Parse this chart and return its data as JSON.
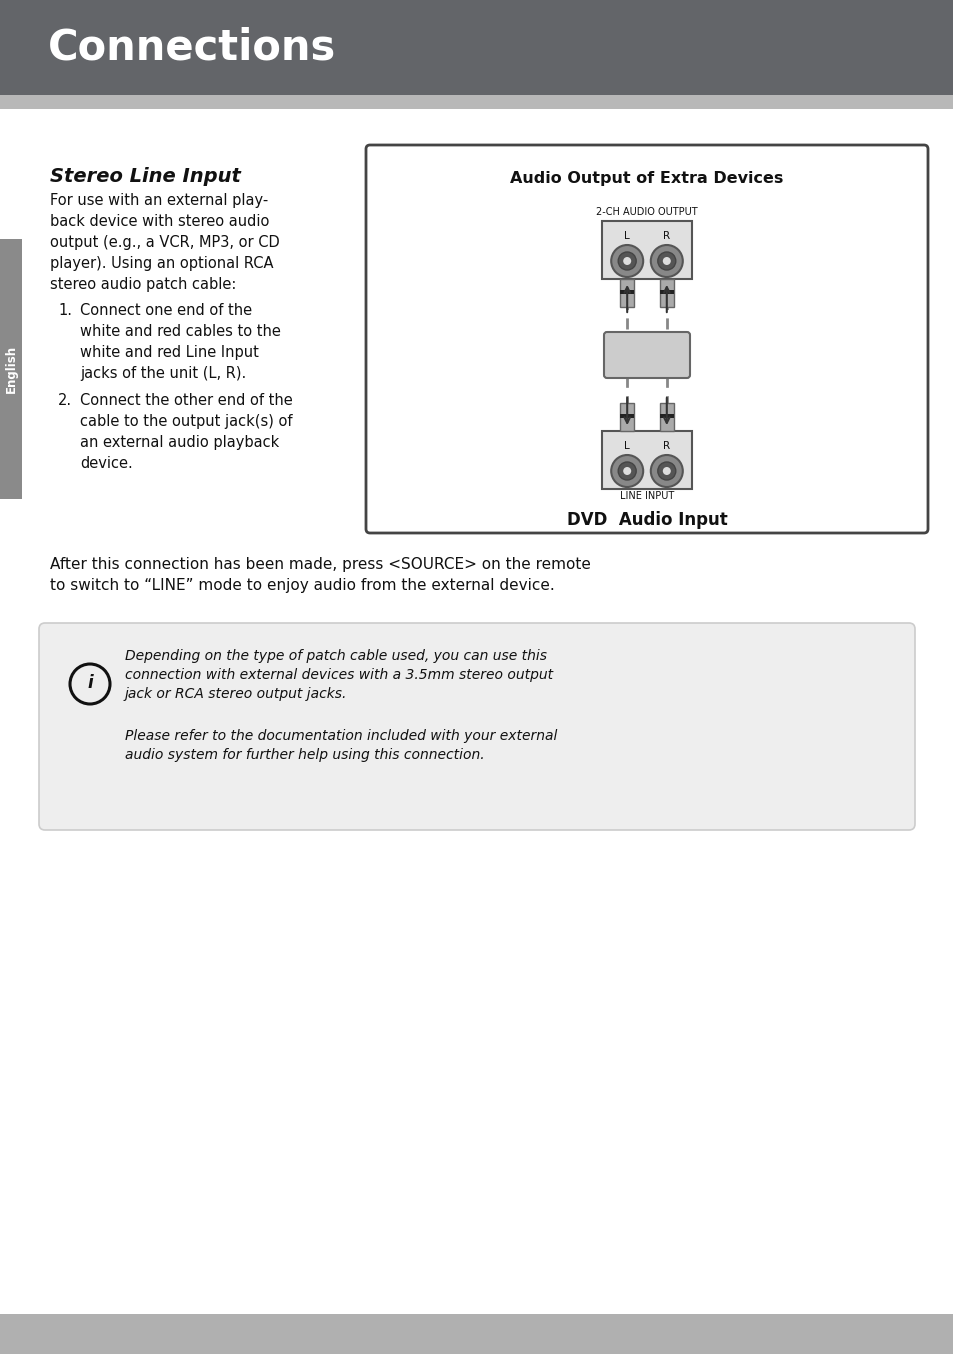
{
  "header_bg": "#636569",
  "header_text": "Connections",
  "header_text_color": "#ffffff",
  "header_stripe_color": "#b8b8b8",
  "body_bg": "#ffffff",
  "left_sidebar_color": "#8a8a8a",
  "left_sidebar_text": "English",
  "section_title": "Stereo Line Input",
  "body_text_intro": "For use with an external play-\nback device with stereo audio\noutput (e.g., a VCR, MP3, or CD\nplayer). Using an optional RCA\nstereo audio patch cable:",
  "step1_text": "Connect one end of the\nwhite and red cables to the\nwhite and red Line Input\njacks of the unit (L, R).",
  "step2_text": "Connect the other end of the\ncable to the output jack(s) of\nan external audio playback\ndevice.",
  "after_text": "After this connection has been made, press <SOURCE> on the remote\nto switch to “LINE” mode to enjoy audio from the external device.",
  "note_text1": "Depending on the type of patch cable used, you can use this\nconnection with external devices with a 3.5mm stereo output\njack or RCA stereo output jacks.",
  "note_text2": "Please refer to the documentation included with your external\naudio system for further help using this connection.",
  "diagram_title": "Audio Output of Extra Devices",
  "diagram_top_label": "2-CH AUDIO OUTPUT",
  "diagram_bottom_label": "LINE INPUT",
  "diagram_bottom_title": "DVD  Audio Input",
  "footer_bg": "#b0b0b0"
}
